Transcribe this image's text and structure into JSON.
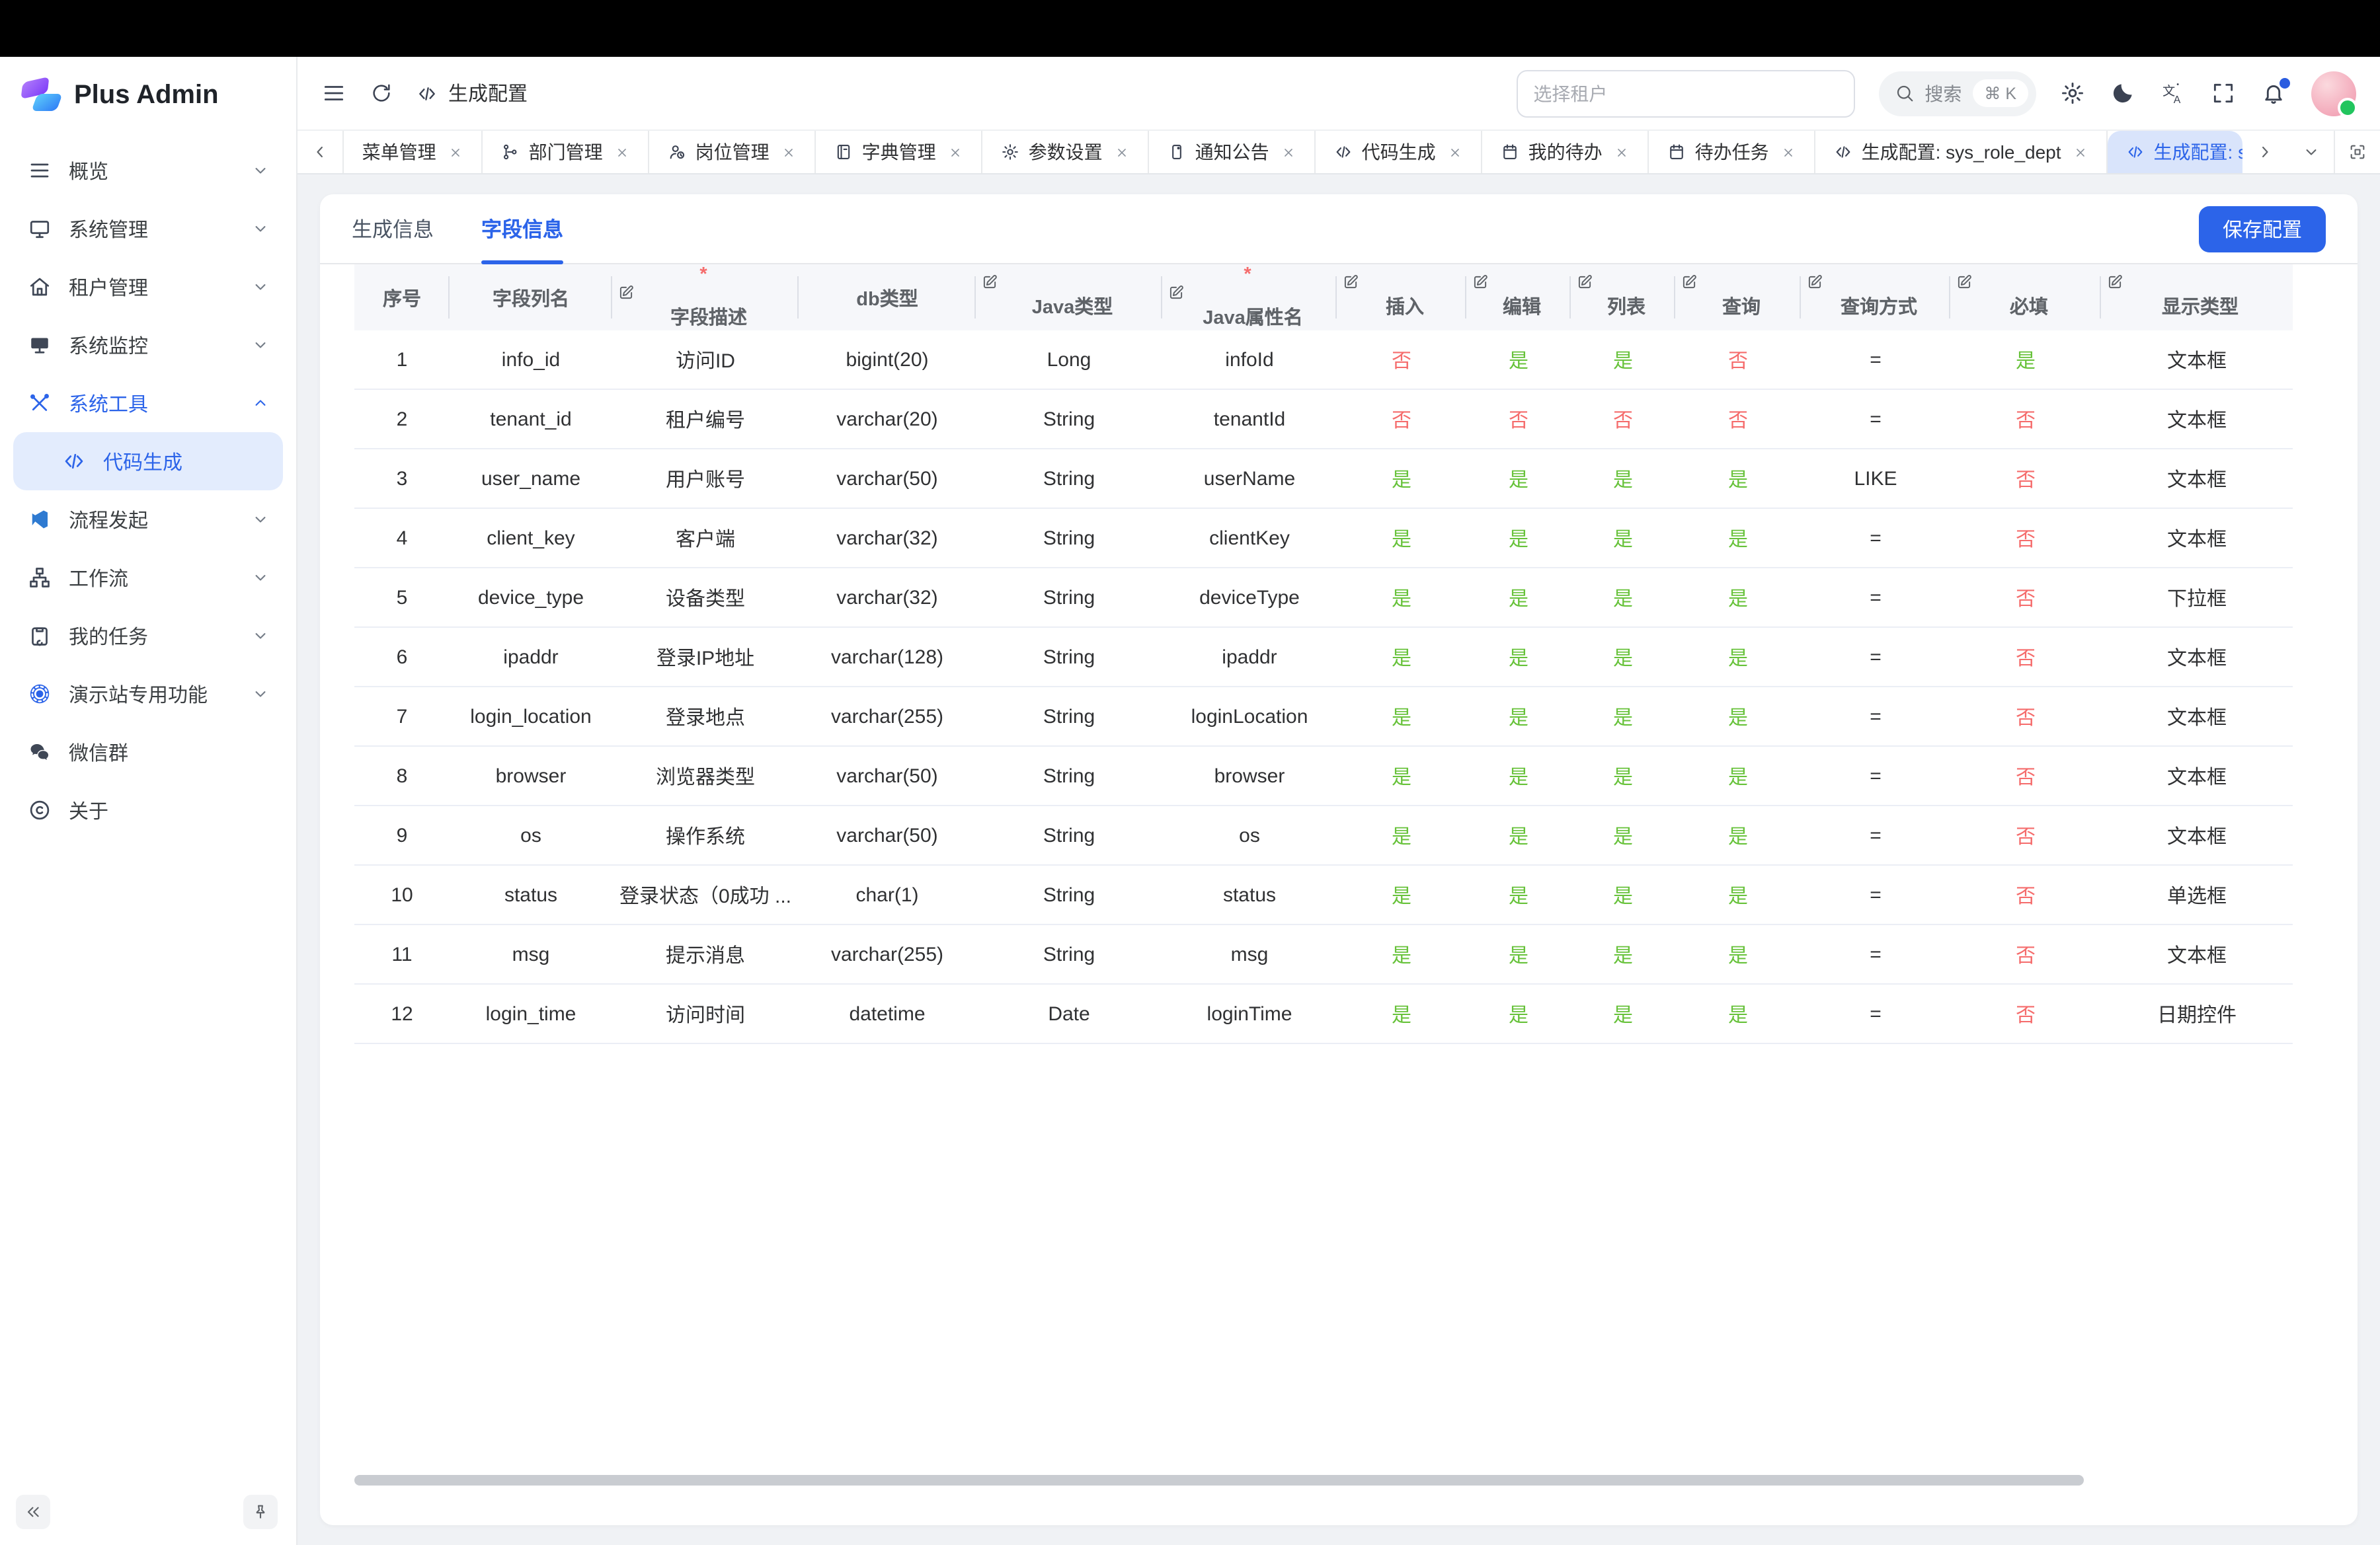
{
  "app": {
    "brand": "Plus Admin"
  },
  "colors": {
    "accent": "#2c64e9",
    "yes": "#67c23a",
    "no": "#f56c6c"
  },
  "topbar": {
    "breadcrumb": {
      "icon": "code",
      "label": "生成配置"
    },
    "tenant_placeholder": "选择租户",
    "search_label": "搜索",
    "search_shortcut": "⌘ K"
  },
  "sidebar": {
    "items": [
      {
        "id": "overview",
        "label": "概览",
        "icon": "hamburger",
        "chevron": "down"
      },
      {
        "id": "system-manage",
        "label": "系统管理",
        "icon": "monitor",
        "chevron": "down"
      },
      {
        "id": "tenant-manage",
        "label": "租户管理",
        "icon": "home",
        "chevron": "down"
      },
      {
        "id": "system-monitor",
        "label": "系统监控",
        "icon": "screen",
        "chevron": "down"
      },
      {
        "id": "system-tools",
        "label": "系统工具",
        "icon": "tools",
        "chevron": "up",
        "active": true,
        "children": [
          {
            "id": "code-generate",
            "label": "代码生成",
            "icon": "code",
            "active": true
          }
        ]
      },
      {
        "id": "flow-start",
        "label": "流程发起",
        "icon": "flow",
        "chevron": "down"
      },
      {
        "id": "workflow",
        "label": "工作流",
        "icon": "workflow",
        "chevron": "down"
      },
      {
        "id": "my-tasks",
        "label": "我的任务",
        "icon": "clipboard",
        "chevron": "down"
      },
      {
        "id": "demo-features",
        "label": "演示站专用功能",
        "icon": "demo",
        "chevron": "down"
      },
      {
        "id": "wechat-group",
        "label": "微信群",
        "icon": "wechat"
      },
      {
        "id": "about",
        "label": "关于",
        "icon": "about"
      }
    ]
  },
  "tabbar": {
    "tabs": [
      {
        "label": "菜单管理",
        "icon": "",
        "closable": true
      },
      {
        "label": "部门管理",
        "icon": "branch",
        "closable": true
      },
      {
        "label": "岗位管理",
        "icon": "userclock",
        "closable": true
      },
      {
        "label": "字典管理",
        "icon": "book",
        "closable": true
      },
      {
        "label": "参数设置",
        "icon": "gear",
        "closable": true
      },
      {
        "label": "通知公告",
        "icon": "notice",
        "closable": true
      },
      {
        "label": "代码生成",
        "icon": "code",
        "closable": true
      },
      {
        "label": "我的待办",
        "icon": "todo",
        "closable": true
      },
      {
        "label": "待办任务",
        "icon": "todo",
        "closable": true
      },
      {
        "label": "生成配置: sys_role_dept",
        "icon": "code",
        "closable": true
      },
      {
        "label": "生成配置: sys_lo",
        "icon": "code",
        "active": true
      }
    ]
  },
  "page": {
    "tabs": [
      {
        "label": "生成信息",
        "active": false
      },
      {
        "label": "字段信息",
        "active": true
      }
    ],
    "save_label": "保存配置"
  },
  "table": {
    "columns": [
      {
        "label": "序号"
      },
      {
        "label": "字段列名"
      },
      {
        "label": "字段描述",
        "required": true,
        "edit": true
      },
      {
        "label": "db类型"
      },
      {
        "label": "Java类型",
        "edit": true
      },
      {
        "label": "Java属性名",
        "required": true,
        "edit": true
      },
      {
        "label": "插入",
        "edit": true
      },
      {
        "label": "编辑",
        "edit": true
      },
      {
        "label": "列表",
        "edit": true
      },
      {
        "label": "查询",
        "edit": true
      },
      {
        "label": "查询方式",
        "edit": true
      },
      {
        "label": "必填",
        "edit": true
      },
      {
        "label": "显示类型",
        "edit": true
      }
    ],
    "rows": [
      [
        "1",
        "info_id",
        "访问ID",
        "bigint(20)",
        "Long",
        "infoId",
        "否",
        "是",
        "是",
        "否",
        "=",
        "是",
        "文本框"
      ],
      [
        "2",
        "tenant_id",
        "租户编号",
        "varchar(20)",
        "String",
        "tenantId",
        "否",
        "否",
        "否",
        "否",
        "=",
        "否",
        "文本框"
      ],
      [
        "3",
        "user_name",
        "用户账号",
        "varchar(50)",
        "String",
        "userName",
        "是",
        "是",
        "是",
        "是",
        "LIKE",
        "否",
        "文本框"
      ],
      [
        "4",
        "client_key",
        "客户端",
        "varchar(32)",
        "String",
        "clientKey",
        "是",
        "是",
        "是",
        "是",
        "=",
        "否",
        "文本框"
      ],
      [
        "5",
        "device_type",
        "设备类型",
        "varchar(32)",
        "String",
        "deviceType",
        "是",
        "是",
        "是",
        "是",
        "=",
        "否",
        "下拉框"
      ],
      [
        "6",
        "ipaddr",
        "登录IP地址",
        "varchar(128)",
        "String",
        "ipaddr",
        "是",
        "是",
        "是",
        "是",
        "=",
        "否",
        "文本框"
      ],
      [
        "7",
        "login_location",
        "登录地点",
        "varchar(255)",
        "String",
        "loginLocation",
        "是",
        "是",
        "是",
        "是",
        "=",
        "否",
        "文本框"
      ],
      [
        "8",
        "browser",
        "浏览器类型",
        "varchar(50)",
        "String",
        "browser",
        "是",
        "是",
        "是",
        "是",
        "=",
        "否",
        "文本框"
      ],
      [
        "9",
        "os",
        "操作系统",
        "varchar(50)",
        "String",
        "os",
        "是",
        "是",
        "是",
        "是",
        "=",
        "否",
        "文本框"
      ],
      [
        "10",
        "status",
        "登录状态（0成功 ...",
        "char(1)",
        "String",
        "status",
        "是",
        "是",
        "是",
        "是",
        "=",
        "否",
        "单选框"
      ],
      [
        "11",
        "msg",
        "提示消息",
        "varchar(255)",
        "String",
        "msg",
        "是",
        "是",
        "是",
        "是",
        "=",
        "否",
        "文本框"
      ],
      [
        "12",
        "login_time",
        "访问时间",
        "datetime",
        "Date",
        "loginTime",
        "是",
        "是",
        "是",
        "是",
        "=",
        "否",
        "日期控件"
      ]
    ]
  }
}
